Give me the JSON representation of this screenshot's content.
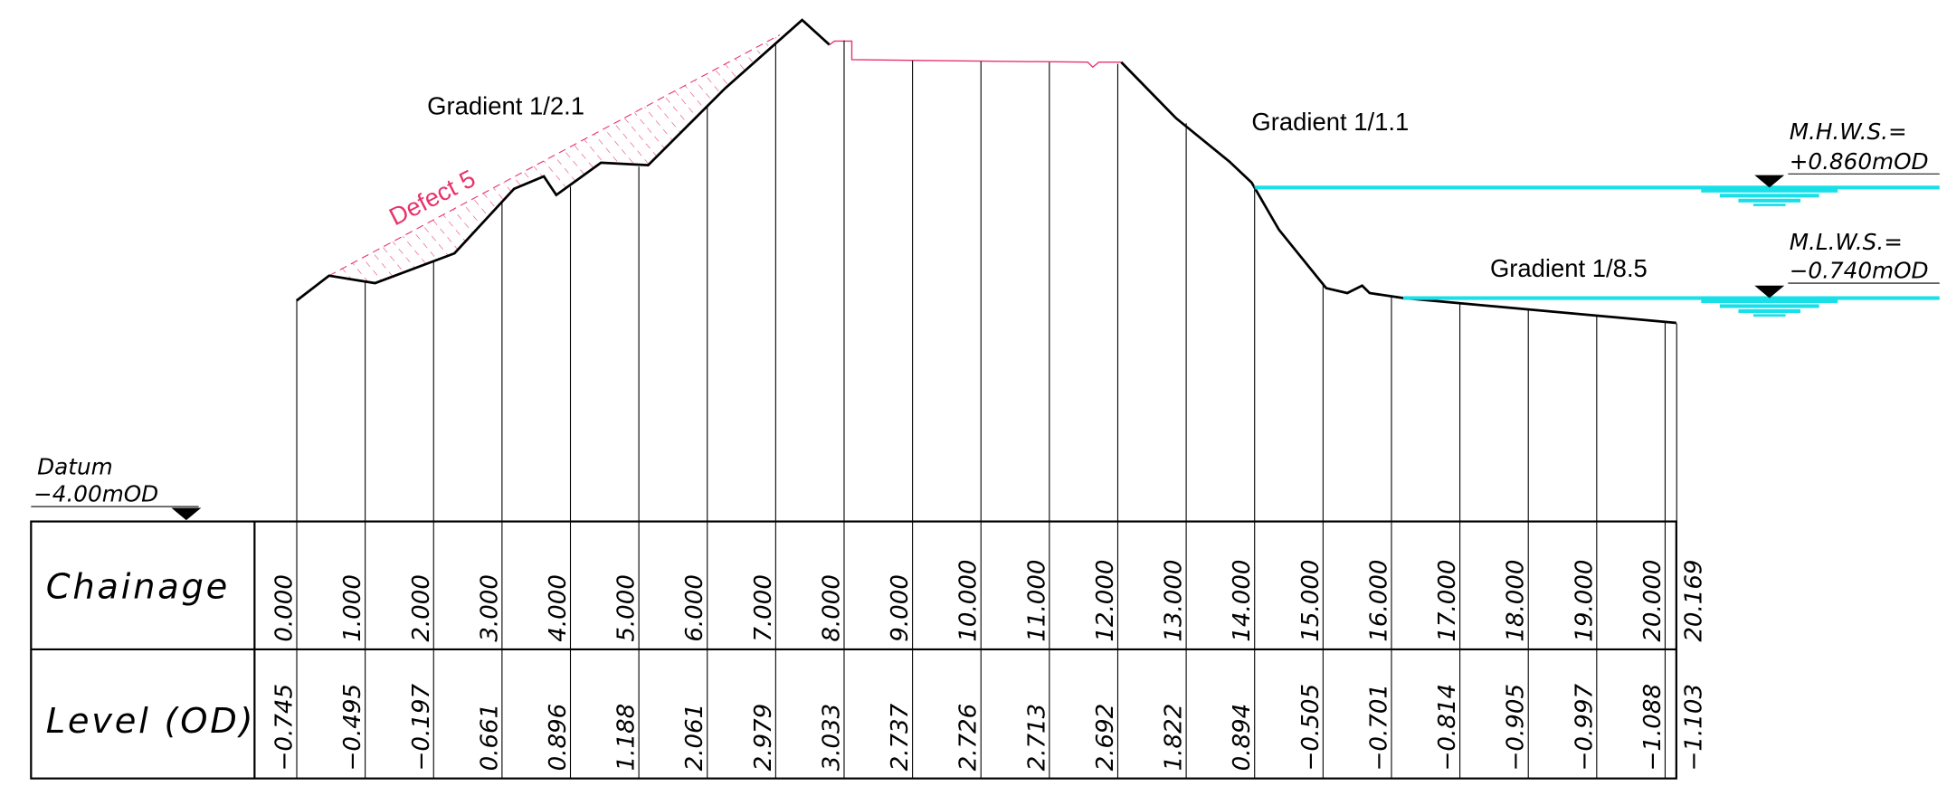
{
  "labels": {
    "gradient_1": "Gradient 1/2.1",
    "gradient_2": "Gradient 1/1.1",
    "gradient_3": "Gradient 1/8.5",
    "defect": "Defect 5",
    "mhws": "M.H.W.S.=",
    "mhws_level": "+0.860mOD",
    "mlws": "M.L.W.S.=",
    "mlws_level": "−0.740mOD",
    "datum": "Datum",
    "datum_level": "−4.00mOD"
  },
  "table": {
    "headers": [
      "Chainage",
      "Level (OD)"
    ],
    "chainage": [
      "0.000",
      "1.000",
      "2.000",
      "3.000",
      "4.000",
      "5.000",
      "6.000",
      "7.000",
      "8.000",
      "9.000",
      "10.000",
      "11.000",
      "12.000",
      "13.000",
      "14.000",
      "15.000",
      "16.000",
      "17.000",
      "18.000",
      "19.000",
      "20.000",
      "20.169"
    ],
    "level": [
      "−0.745",
      "−0.495",
      "−0.197",
      "0.661",
      "0.896",
      "1.188",
      "2.061",
      "2.979",
      "3.033",
      "2.737",
      "2.726",
      "2.713",
      "2.692",
      "1.822",
      "0.894",
      "−0.505",
      "−0.701",
      "−0.814",
      "−0.905",
      "−0.997",
      "−1.088",
      "−1.103"
    ]
  }
}
